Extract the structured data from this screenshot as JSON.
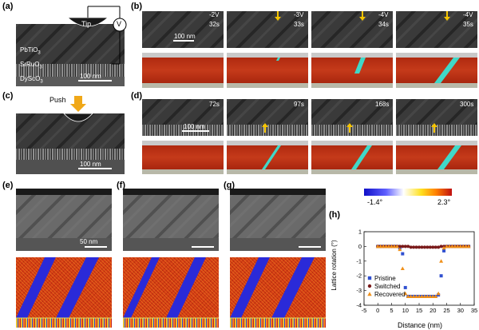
{
  "panel_labels": [
    "(a)",
    "(b)",
    "(c)",
    "(d)",
    "(e)",
    "(f)",
    "(g)",
    "(h)"
  ],
  "panel_a": {
    "tip_label": "Tip",
    "voltmeter_label": "V",
    "layers": [
      "PbTiO3",
      "SrRuO3",
      "DyScO3"
    ],
    "layer_names": {
      "pto": "PbTiO",
      "sro": "SrRuO",
      "dso": "DyScO",
      "sub3": "3"
    },
    "scale": "100 nm"
  },
  "panel_b": {
    "frames": [
      {
        "voltage": "-2V",
        "time": "32s"
      },
      {
        "voltage": "-3V",
        "time": "33s"
      },
      {
        "voltage": "-4V",
        "time": "34s"
      },
      {
        "voltage": "-4V",
        "time": "35s"
      }
    ],
    "scale": "100 nm"
  },
  "panel_c": {
    "push_label": "Push",
    "scale": "100 nm"
  },
  "panel_d": {
    "frames": [
      {
        "time": "72s"
      },
      {
        "time": "97s"
      },
      {
        "time": "168s"
      },
      {
        "time": "300s"
      }
    ],
    "scale": "100 nm"
  },
  "panel_e": {
    "scale": "50 nm"
  },
  "colorbar": {
    "min_label": "-1.4°",
    "max_label": "2.3°"
  },
  "colors": {
    "accent_arrow": "#f5c400",
    "phase_red": "#b43016",
    "phase_cyan": "#40d8c8",
    "domain_blue": "#2a2ad8"
  },
  "chart_data": {
    "type": "scatter",
    "xlabel": "Distance (nm)",
    "ylabel": "Lattice rotation (°)",
    "xlim": [
      -5,
      35
    ],
    "ylim": [
      -4,
      1
    ],
    "xticks": [
      "-5",
      "0",
      "5",
      "10",
      "15",
      "20",
      "25",
      "30",
      "35"
    ],
    "yticks": [
      "-4",
      "-3",
      "-2",
      "-1",
      "0",
      "1"
    ],
    "series": [
      {
        "name": "Pristine",
        "color": "#3050d0",
        "marker": "square",
        "x": [
          0,
          1,
          2,
          3,
          4,
          5,
          6,
          7,
          8,
          9,
          10,
          11,
          12,
          13,
          14,
          15,
          16,
          17,
          18,
          19,
          20,
          21,
          22,
          23,
          24,
          25,
          26,
          27,
          28,
          29,
          30,
          31,
          32,
          33
        ],
        "y": [
          0,
          0,
          0,
          0,
          0,
          0,
          0,
          0,
          -0.1,
          -0.5,
          -2.8,
          -3.4,
          -3.4,
          -3.4,
          -3.4,
          -3.4,
          -3.4,
          -3.4,
          -3.4,
          -3.4,
          -3.4,
          -3.4,
          -3.3,
          -2.0,
          -0.3,
          0,
          0,
          0,
          0,
          0,
          0,
          0,
          0,
          0
        ]
      },
      {
        "name": "Switched",
        "color": "#7a1a1a",
        "marker": "circle",
        "x": [
          0,
          1,
          2,
          3,
          4,
          5,
          6,
          7,
          8,
          9,
          10,
          11,
          12,
          13,
          14,
          15,
          16,
          17,
          18,
          19,
          20,
          21,
          22,
          23,
          24,
          25,
          26,
          27,
          28,
          29,
          30,
          31,
          32,
          33
        ],
        "y": [
          0,
          0,
          0,
          0,
          0,
          0,
          0,
          0,
          0,
          0,
          0,
          0,
          -0.05,
          -0.05,
          -0.05,
          -0.05,
          -0.05,
          -0.05,
          -0.05,
          -0.05,
          -0.05,
          -0.05,
          -0.05,
          0,
          0,
          0,
          0,
          0,
          0,
          0,
          0,
          0,
          0,
          0
        ]
      },
      {
        "name": "Recovered",
        "color": "#f0901a",
        "marker": "triangle",
        "x": [
          0,
          1,
          2,
          3,
          4,
          5,
          6,
          7,
          8,
          9,
          10,
          11,
          12,
          13,
          14,
          15,
          16,
          17,
          18,
          19,
          20,
          21,
          22,
          23,
          24,
          25,
          26,
          27,
          28,
          29,
          30,
          31,
          32,
          33
        ],
        "y": [
          0,
          0,
          0,
          0,
          0,
          0,
          0,
          0,
          -0.2,
          -1.5,
          -3.2,
          -3.4,
          -3.4,
          -3.4,
          -3.4,
          -3.4,
          -3.4,
          -3.4,
          -3.4,
          -3.4,
          -3.4,
          -3.4,
          -3.2,
          -1.0,
          -0.1,
          0,
          0,
          0,
          0,
          0,
          0,
          0,
          0,
          0
        ]
      }
    ],
    "legend_placement": "bottom-left"
  }
}
